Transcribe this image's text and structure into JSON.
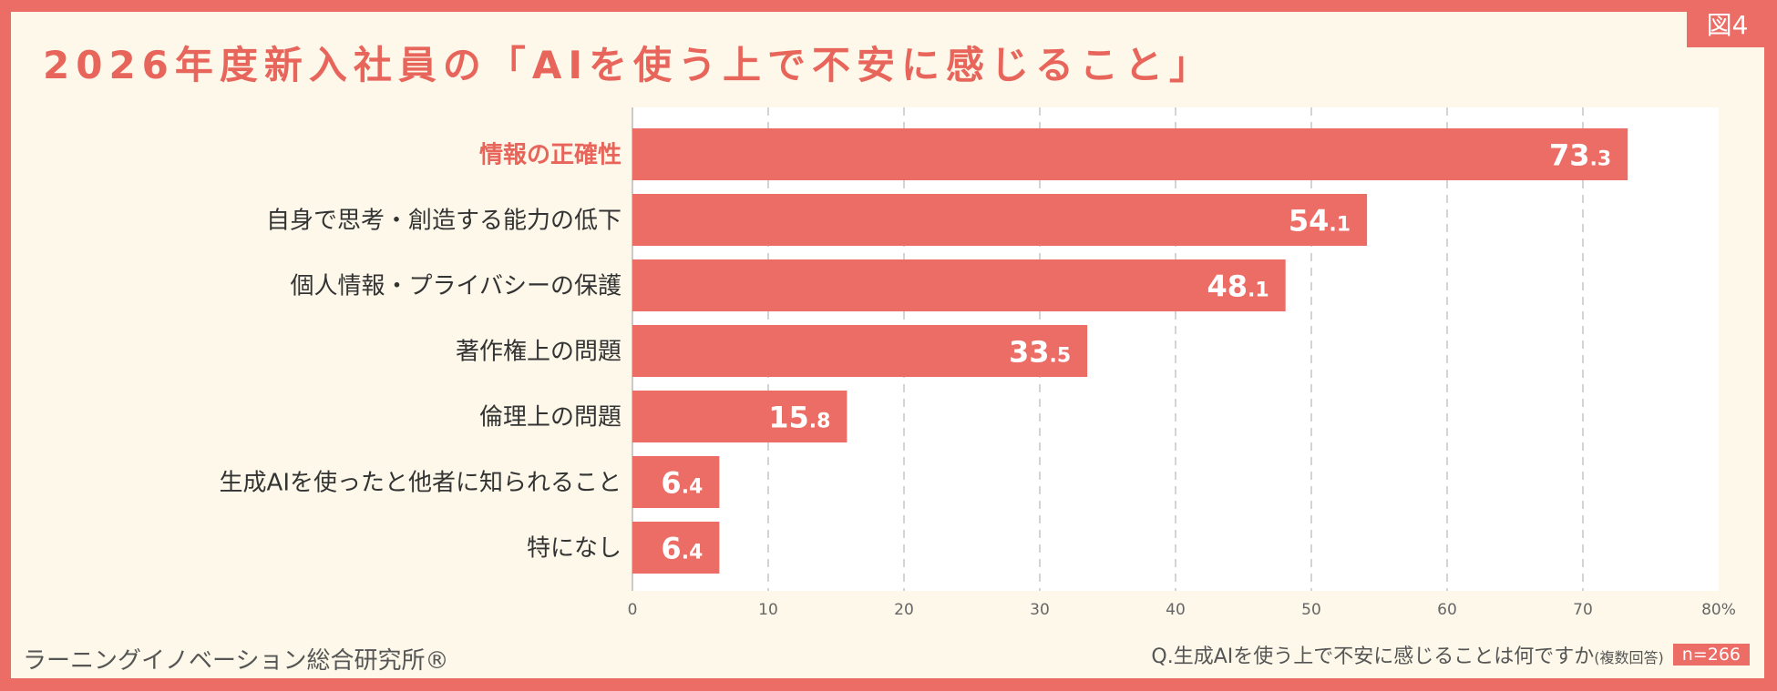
{
  "figure_label": "図4",
  "title": "2026年度新入社員の「AIを使う上で不安に感じること」",
  "footer": {
    "organization": "ラーニングイノベーション総合研究所®",
    "question": "Q.生成AIを使う上で不安に感じることは何ですか",
    "question_note": "(複数回答)",
    "sample_size": "n=266"
  },
  "colors": {
    "bar": "#ec6d65",
    "highlight_label": "#e8655c",
    "background": "#fdf8e9",
    "plot_background": "#ffffff",
    "frame": "#ec6d65"
  },
  "chart_data": {
    "type": "bar",
    "orientation": "horizontal",
    "categories": [
      "情報の正確性",
      "自身で思考・創造する能力の低下",
      "個人情報・プライバシーの保護",
      "著作権上の問題",
      "倫理上の問題",
      "生成AIを使ったと他者に知られること",
      "特になし"
    ],
    "values": [
      73.3,
      54.1,
      48.1,
      33.5,
      15.8,
      6.4,
      6.4
    ],
    "highlighted_category": "情報の正確性",
    "xlim": [
      0,
      80
    ],
    "x_ticks": [
      "0",
      "10",
      "20",
      "30",
      "40",
      "50",
      "60",
      "70",
      "80%"
    ],
    "grid": "vertical dashed",
    "unit": "%"
  }
}
